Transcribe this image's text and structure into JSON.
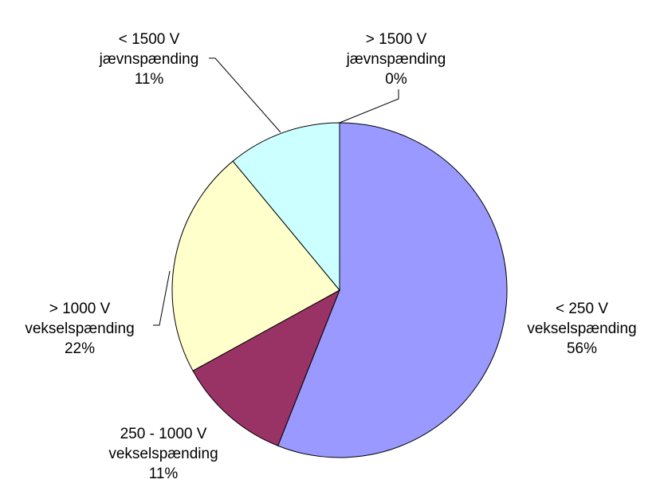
{
  "chart_data": {
    "type": "pie",
    "categories": [
      "< 250 V\nvekselspænding",
      "250 - 1000 V\nvekselspænding",
      "> 1000 V\nvekselspænding",
      "< 1500 V\njævnspænding",
      "> 1500 V\njævnspænding"
    ],
    "values": [
      56,
      11,
      22,
      11,
      0
    ],
    "value_labels": [
      "56%",
      "11%",
      "22%",
      "11%",
      "0%"
    ],
    "colors": [
      "#9999ff",
      "#993366",
      "#ffffcc",
      "#ccffff",
      "#660066"
    ]
  }
}
